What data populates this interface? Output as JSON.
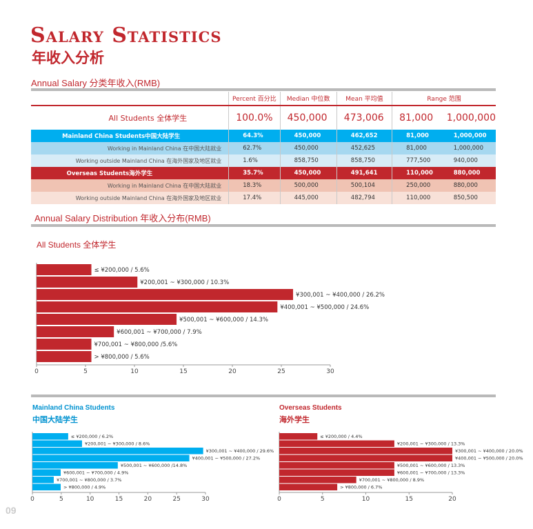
{
  "title_en": "Salary Statistics",
  "title_cn": "年收入分析",
  "table_title": "Annual Salary  分类年收入(RMB)",
  "dist_title": "Annual Salary Distribution  年收入分布(RMB)",
  "page_number": "09",
  "colors": {
    "accent_red": "#c1272d",
    "accent_blue": "#00aeef",
    "gray_bar": "#b9b9b9"
  },
  "table": {
    "headers": {
      "percent": "Percent 百分比",
      "median": "Median 中位数",
      "mean": "Mean 平均值",
      "range": "Range 范围"
    },
    "rows": [
      {
        "label": "All Students 全体学生",
        "percent": "100.0%",
        "median": "450,000",
        "mean": "473,006",
        "range_min": "81,000",
        "range_max": "1,000,000"
      },
      {
        "label": "Mainland China Students中国大陆学生",
        "percent": "64.3%",
        "median": "450,000",
        "mean": "462,652",
        "range_min": "81,000",
        "range_max": "1,000,000"
      },
      {
        "label": "Working in Mainland China 在中国大陆就业",
        "percent": "62.7%",
        "median": "450,000",
        "mean": "452,625",
        "range_min": "81,000",
        "range_max": "1,000,000"
      },
      {
        "label": "Working outside Mainland China 在海外国家及地区就业",
        "percent": "1.6%",
        "median": "858,750",
        "mean": "858,750",
        "range_min": "777,500",
        "range_max": "940,000"
      },
      {
        "label": "Overseas Students海外学生",
        "percent": "35.7%",
        "median": "450,000",
        "mean": "491,641",
        "range_min": "110,000",
        "range_max": "880,000"
      },
      {
        "label": "Working in Mainland China 在中国大陆就业",
        "percent": "18.3%",
        "median": "500,000",
        "mean": "500,104",
        "range_min": "250,000",
        "range_max": "880,000"
      },
      {
        "label": "Working outside Mainland China 在海外国家及地区就业",
        "percent": "17.4%",
        "median": "445,000",
        "mean": "482,794",
        "range_min": "110,000",
        "range_max": "850,500"
      }
    ]
  },
  "chart_data": [
    {
      "type": "bar",
      "orientation": "horizontal",
      "title": "All Students 全体学生",
      "categories": [
        "≤ ¥200,000",
        "¥200,001 ~ ¥300,000",
        "¥300,001 ~ ¥400,000",
        "¥400,001 ~ ¥500,000",
        "¥500,001 ~ ¥600,000",
        "¥600,001 ~ ¥700,000",
        "¥700,001 ~ ¥800,000",
        "> ¥800,000"
      ],
      "values": [
        5.6,
        10.3,
        26.2,
        24.6,
        14.3,
        7.9,
        5.6,
        5.6
      ],
      "data_labels": [
        "≤ ¥200,000 / 5.6%",
        "¥200,001 ~ ¥300,000 / 10.3%",
        "¥300,001 ~ ¥400,000 / 26.2%",
        "¥400,001 ~ ¥500,000 / 24.6%",
        "¥500,001 ~ ¥600,000 / 14.3%",
        "¥600,001 ~ ¥700,000 / 7.9%",
        "¥700,001 ~ ¥800,000 /5.6%",
        "> ¥800,000 / 5.6%"
      ],
      "xlim": [
        0,
        30
      ],
      "xticks": [
        "0",
        "5",
        "10",
        "15",
        "20",
        "25",
        "30"
      ],
      "bar_color": "#c1272d"
    },
    {
      "type": "bar",
      "orientation": "horizontal",
      "title": "Mainland China Students",
      "subtitle": "中国大陆学生",
      "categories": [
        "≤ ¥200,000",
        "¥200,001 ~ ¥300,000",
        "¥300,001 ~ ¥400,000",
        "¥400,001 ~ ¥500,000",
        "¥500,001 ~ ¥600,000",
        "¥600,001 ~ ¥700,000",
        "¥700,001 ~ ¥800,000",
        "> ¥800,000"
      ],
      "values": [
        6.2,
        8.6,
        29.6,
        27.2,
        14.8,
        4.9,
        3.7,
        4.9
      ],
      "data_labels": [
        "≤ ¥200,000 / 6.2%",
        "¥200,001 ~ ¥300,000 / 8.6%",
        "¥300,001 ~ ¥400,000 / 29.6%",
        "¥400,001 ~ ¥500,000 / 27.2%",
        "¥500,001 ~ ¥600,000 /14.8%",
        "¥600,001 ~ ¥700,000 / 4.9%",
        "¥700,001 ~ ¥800,000 / 3.7%",
        "> ¥800,000 / 4.9%"
      ],
      "xlim": [
        0,
        30
      ],
      "xticks": [
        "0",
        "5",
        "10",
        "15",
        "20",
        "25",
        "30"
      ],
      "bar_color": "#00aeef"
    },
    {
      "type": "bar",
      "orientation": "horizontal",
      "title": "Overseas Students",
      "subtitle": "海外学生",
      "categories": [
        "≤ ¥200,000",
        "¥200,001 ~ ¥300,000",
        "¥300,001 ~ ¥400,000",
        "¥400,001 ~ ¥500,000",
        "¥500,001 ~ ¥600,000",
        "¥600,001 ~ ¥700,000",
        "¥700,001 ~ ¥800,000",
        "> ¥800,000"
      ],
      "values": [
        4.4,
        13.3,
        20.0,
        20.0,
        13.3,
        13.3,
        8.9,
        6.7
      ],
      "data_labels": [
        "≤ ¥200,000 / 4.4%",
        "¥200,001 ~ ¥300,000 / 13.3%",
        "¥300,001 ~ ¥400,000 / 20.0%",
        "¥400,001 ~ ¥500,000 / 20.0%",
        "¥500,001 ~ ¥600,000 / 13.3%",
        "¥600,001 ~ ¥700,000 / 13.3%",
        "¥700,001 ~ ¥800,000 / 8.9%",
        "> ¥800,000 / 6.7%"
      ],
      "xlim": [
        0,
        20
      ],
      "xticks": [
        "0",
        "5",
        "10",
        "15",
        "20"
      ],
      "bar_color": "#c1272d"
    }
  ]
}
